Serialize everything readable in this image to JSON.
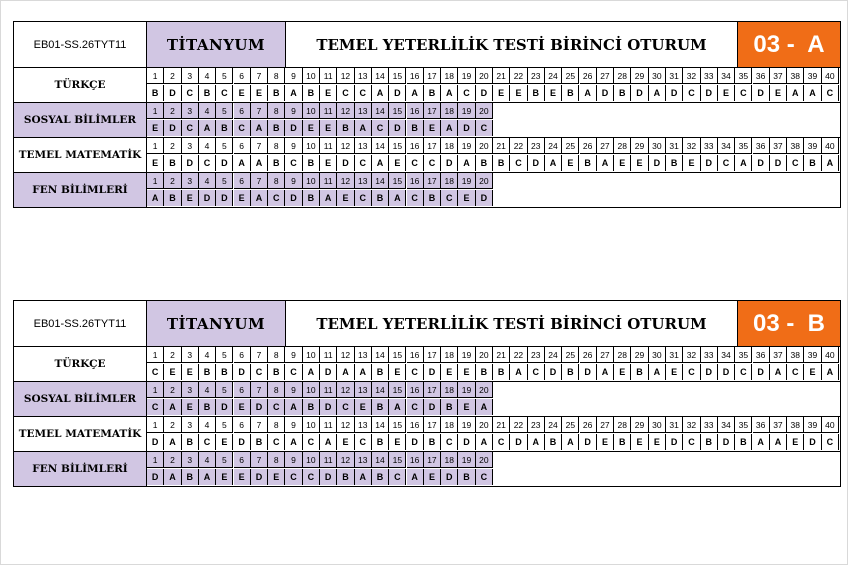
{
  "blocks": [
    {
      "code": "EB01-SS.26TYT11",
      "booklet": "TİTANYUM",
      "title": "TEMEL YETERLİLİK TESTİ BİRİNCİ OTURUM",
      "form": "03 -  A",
      "subjects": [
        {
          "name": "TÜRKÇE",
          "answers": "BDCBCEEBABECCADABACDEEBEBADBDADCDECDEAAC"
        },
        {
          "name": "SOSYAL BİLİMLER",
          "answers": "EDCABCABDEEBACDBEADC"
        },
        {
          "name": "TEMEL MATEMATİK",
          "answers": "EBDCDAABCBEDCAECCDABBCDAEBAEEDBEDCADDCBA"
        },
        {
          "name": "FEN BİLİMLERİ",
          "answers": "ABEDDEACDBAECBACBCED"
        }
      ]
    },
    {
      "code": "EB01-SS.26TYT11",
      "booklet": "TİTANYUM",
      "title": "TEMEL YETERLİLİK TESTİ BİRİNCİ OTURUM",
      "form": "03 -  B",
      "subjects": [
        {
          "name": "TÜRKÇE",
          "answers": "CEEBBDCBCADAABECDEEBBACDBDAEBAECDDCDACEA"
        },
        {
          "name": "SOSYAL BİLİMLER",
          "answers": "CAEBDEDCABDCEBACDBEA"
        },
        {
          "name": "TEMEL MATEMATİK",
          "answers": "DABCEDBCACAECBEDBCDACDABADEBEEDCBDBAAEDC"
        },
        {
          "name": "FEN BİLİMLERİ",
          "answers": "DABAEEDECCDBABCAEDBC"
        }
      ]
    }
  ]
}
